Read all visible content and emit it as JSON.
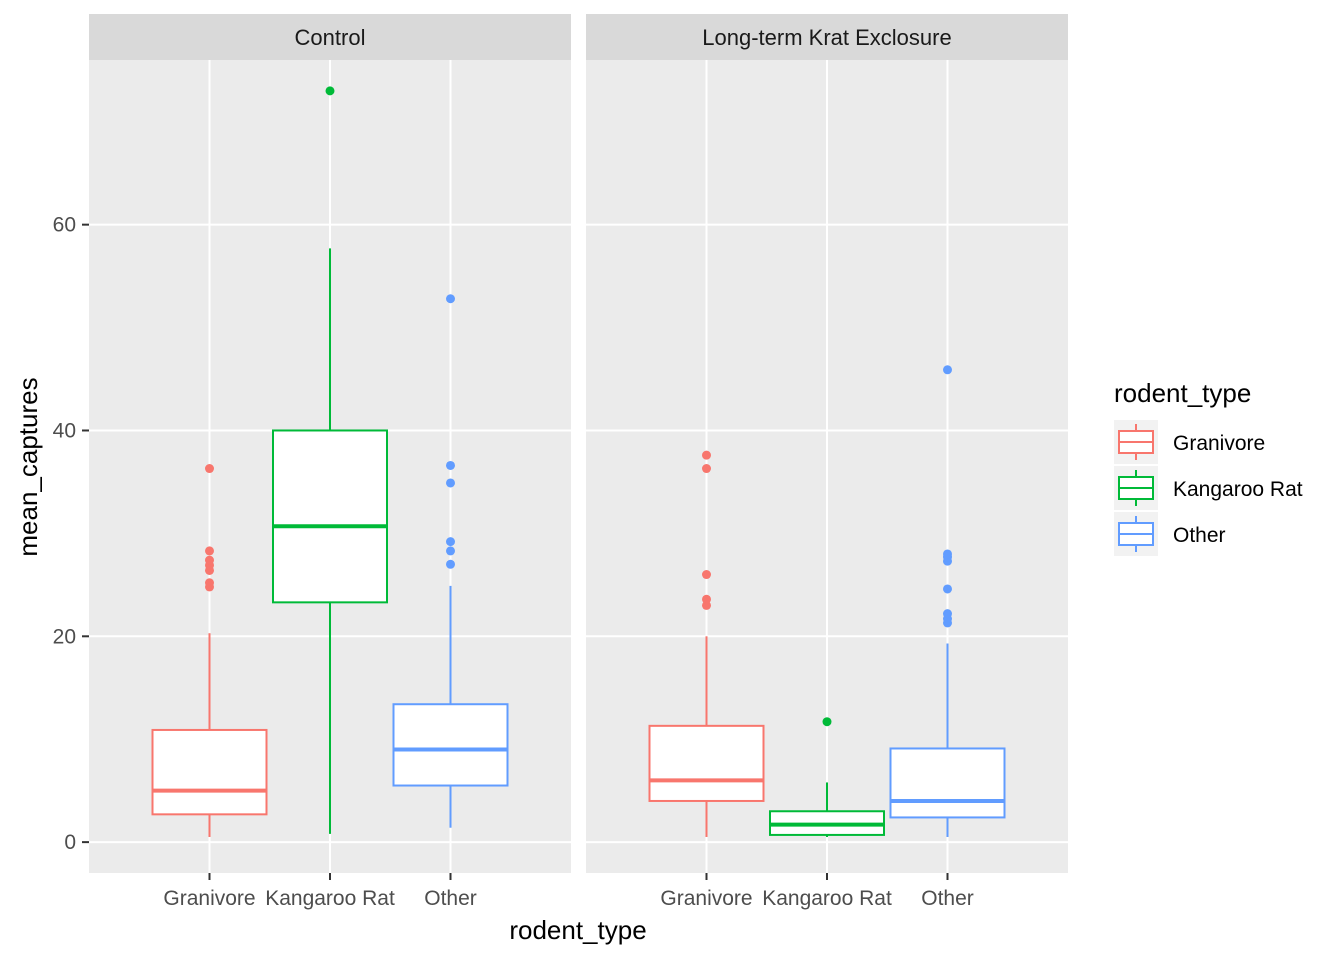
{
  "chart_data": {
    "type": "box",
    "facets": [
      "Control",
      "Long-term Krat Exclosure"
    ],
    "categories": [
      "Granivore",
      "Kangaroo Rat",
      "Other"
    ],
    "xlabel": "rodent_type",
    "ylabel": "mean_captures",
    "ylim": [
      -3,
      76
    ],
    "yticks": [
      0,
      20,
      40,
      60
    ],
    "grid": true,
    "legend": {
      "title": "rodent_type",
      "position": "right",
      "items": [
        "Granivore",
        "Kangaroo Rat",
        "Other"
      ]
    },
    "colors": {
      "Granivore": "#F8766D",
      "Kangaroo Rat": "#00BA38",
      "Other": "#619CFF",
      "panel_bg": "#EBEBEB",
      "strip_bg": "#D9D9D9",
      "grid": "#FFFFFF"
    },
    "boxes": [
      {
        "facet": "Control",
        "category": "Granivore",
        "whisker_low": 0.5,
        "q1": 2.7,
        "median": 5.0,
        "q3": 10.9,
        "whisker_high": 20.3,
        "outliers": [
          24.8,
          25.2,
          26.4,
          26.9,
          27.4,
          28.3,
          36.3
        ]
      },
      {
        "facet": "Control",
        "category": "Kangaroo Rat",
        "whisker_low": 0.8,
        "q1": 23.3,
        "median": 30.7,
        "q3": 40.0,
        "whisker_high": 57.7,
        "outliers": [
          73.0
        ]
      },
      {
        "facet": "Control",
        "category": "Other",
        "whisker_low": 1.4,
        "q1": 5.5,
        "median": 9.0,
        "q3": 13.4,
        "whisker_high": 24.9,
        "outliers": [
          27.0,
          28.3,
          29.2,
          34.9,
          36.6,
          52.8
        ]
      },
      {
        "facet": "Long-term Krat Exclosure",
        "category": "Granivore",
        "whisker_low": 0.5,
        "q1": 4.0,
        "median": 6.0,
        "q3": 11.3,
        "whisker_high": 20.0,
        "outliers": [
          23.0,
          23.6,
          26.0,
          36.3,
          37.6
        ]
      },
      {
        "facet": "Long-term Krat Exclosure",
        "category": "Kangaroo Rat",
        "whisker_low": 0.5,
        "q1": 0.7,
        "median": 1.7,
        "q3": 3.0,
        "whisker_high": 5.8,
        "outliers": [
          11.7
        ]
      },
      {
        "facet": "Long-term Krat Exclosure",
        "category": "Other",
        "whisker_low": 0.5,
        "q1": 2.4,
        "median": 4.0,
        "q3": 9.1,
        "whisker_high": 19.3,
        "outliers": [
          21.3,
          21.7,
          22.2,
          24.6,
          27.3,
          27.7,
          28.0,
          45.9
        ]
      }
    ]
  }
}
